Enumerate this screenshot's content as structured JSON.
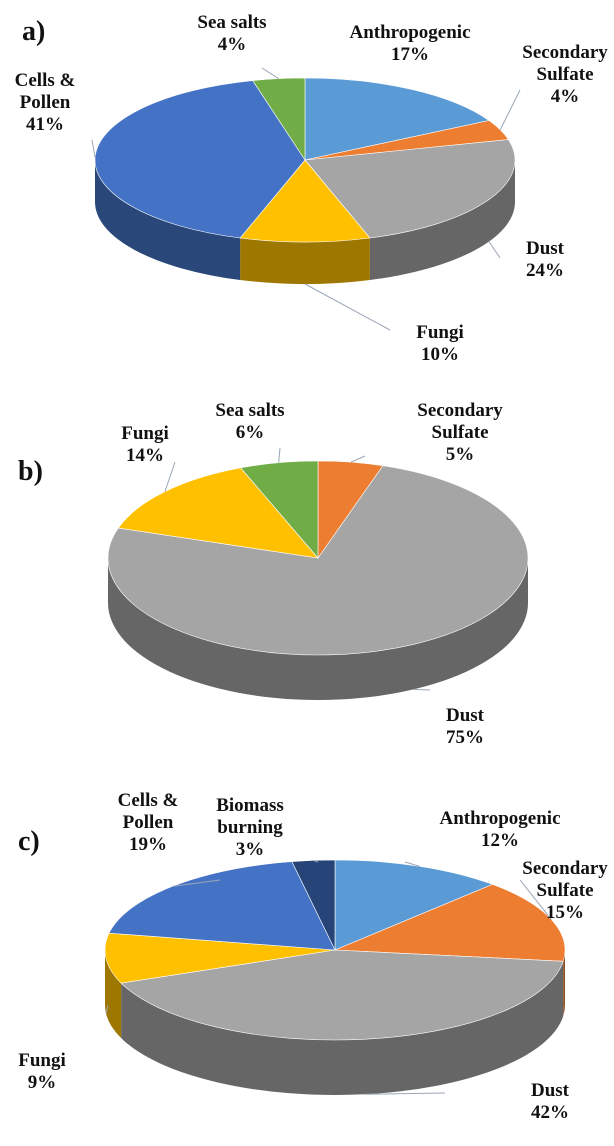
{
  "chart_data": [
    {
      "type": "pie",
      "title": "a)",
      "categories": [
        "Anthropogenic",
        "Secondary Sulfate",
        "Dust",
        "Fungi",
        "Cells & Pollen",
        "Sea salts"
      ],
      "values": [
        17,
        4,
        24,
        10,
        41,
        4
      ],
      "value_labels": [
        "17%",
        "4%",
        "24%",
        "10%",
        "41%",
        "4%"
      ],
      "colors": [
        "#5b9bd5",
        "#ed7d31",
        "#a5a5a5",
        "#ffc000",
        "#4472c4",
        "#70ad47"
      ]
    },
    {
      "type": "pie",
      "title": "b)",
      "categories": [
        "Secondary Sulfate",
        "Dust",
        "Fungi",
        "Sea salts"
      ],
      "values": [
        5,
        75,
        14,
        6
      ],
      "value_labels": [
        "5%",
        "75%",
        "14%",
        "6%"
      ],
      "colors": [
        "#ed7d31",
        "#a5a5a5",
        "#ffc000",
        "#70ad47"
      ]
    },
    {
      "type": "pie",
      "title": "c)",
      "categories": [
        "Anthropogenic",
        "Secondary Sulfate",
        "Dust",
        "Fungi",
        "Cells & Pollen",
        "Biomass burning"
      ],
      "values": [
        12,
        15,
        42,
        9,
        19,
        3
      ],
      "value_labels": [
        "12%",
        "15%",
        "42%",
        "9%",
        "19%",
        "3%"
      ],
      "colors": [
        "#5b9bd5",
        "#ed7d31",
        "#a5a5a5",
        "#ffc000",
        "#4472c4",
        "#264478"
      ]
    }
  ]
}
